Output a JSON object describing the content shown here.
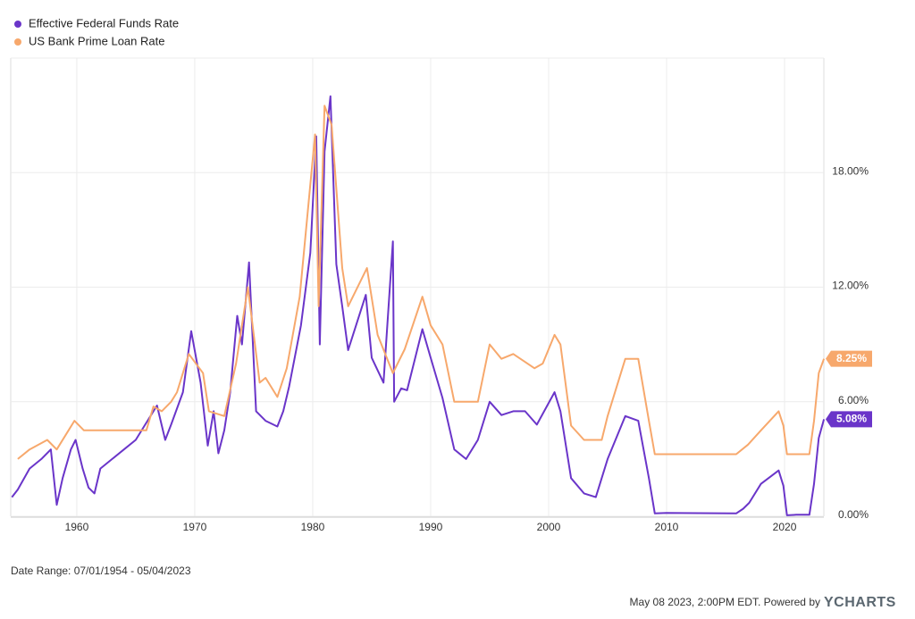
{
  "chart_data": {
    "type": "line",
    "xlim": [
      1954.4,
      2023.33
    ],
    "xticks": [
      1960,
      1970,
      1980,
      1990,
      2000,
      2010,
      2020
    ],
    "ylim": [
      0,
      24
    ],
    "yticks": [
      {
        "value": 0,
        "label": "0.00%"
      },
      {
        "value": 6,
        "label": "6.00%"
      },
      {
        "value": 12,
        "label": "12.00%"
      },
      {
        "value": 18,
        "label": "18.00%"
      }
    ],
    "grid": true,
    "legend": "top-left",
    "series": [
      {
        "name": "Effective Federal Funds Rate",
        "color": "#6a35c9",
        "x": [
          1954.5,
          1955,
          1956,
          1957,
          1957.8,
          1958.3,
          1958.8,
          1959.5,
          1959.9,
          1960.5,
          1961,
          1961.5,
          1962,
          1963,
          1964,
          1965,
          1966,
          1966.8,
          1967.5,
          1968,
          1969,
          1969.7,
          1970.5,
          1971.1,
          1971.6,
          1972,
          1972.5,
          1973,
          1973.6,
          1974,
          1974.6,
          1975.2,
          1976,
          1977,
          1977.5,
          1978,
          1979,
          1979.8,
          1980.3,
          1980.6,
          1981,
          1981.5,
          1982,
          1982.5,
          1983,
          1984.5,
          1985,
          1986,
          1986.8,
          1986.9,
          1987.5,
          1988,
          1989.3,
          1990,
          1991,
          1992,
          1993,
          1994,
          1995,
          1996,
          1997,
          1998,
          1999,
          2000.5,
          2001,
          2001.9,
          2003,
          2004,
          2005,
          2006.5,
          2007.6,
          2008.5,
          2009,
          2010,
          2015.9,
          2016.5,
          2017,
          2018,
          2019.5,
          2019.9,
          2020.2,
          2021,
          2022.1,
          2022.5,
          2022.9,
          2023.34
        ],
        "values": [
          1.0,
          1.4,
          2.5,
          3.0,
          3.5,
          0.6,
          2.0,
          3.5,
          4.0,
          2.5,
          1.5,
          1.2,
          2.5,
          3.0,
          3.5,
          4.0,
          5.0,
          5.8,
          4.0,
          4.8,
          6.5,
          9.7,
          7.0,
          3.7,
          5.5,
          3.3,
          4.5,
          6.5,
          10.5,
          9.0,
          13.3,
          5.5,
          5.0,
          4.7,
          5.5,
          6.8,
          10.0,
          13.8,
          19.9,
          9.0,
          19.1,
          22.0,
          13.2,
          11.0,
          8.7,
          11.6,
          8.3,
          7.0,
          14.4,
          6.0,
          6.7,
          6.6,
          9.8,
          8.3,
          6.2,
          3.5,
          3.0,
          4.0,
          6.0,
          5.3,
          5.5,
          5.5,
          4.8,
          6.5,
          5.5,
          2.0,
          1.2,
          1.0,
          3.0,
          5.25,
          5.0,
          2.0,
          0.15,
          0.18,
          0.15,
          0.4,
          0.7,
          1.7,
          2.4,
          1.6,
          0.05,
          0.08,
          0.08,
          1.7,
          4.1,
          5.08
        ],
        "value_labels": [
          null,
          null,
          null,
          null,
          null,
          null,
          null,
          null,
          null,
          null,
          null,
          null,
          null,
          null,
          null,
          null,
          null,
          null,
          null,
          null,
          null,
          null,
          null,
          null,
          null,
          null,
          null,
          null,
          null,
          null,
          null,
          null,
          null,
          null,
          null,
          null,
          null,
          null,
          null,
          null,
          null,
          null,
          null,
          null,
          null,
          null,
          null,
          null,
          null,
          null,
          null,
          null,
          null,
          null,
          null,
          null,
          null,
          null,
          null,
          null,
          null,
          null,
          null,
          null,
          null,
          null,
          null,
          null,
          null,
          null,
          null,
          null,
          null,
          null,
          null,
          null,
          null,
          null,
          null,
          null,
          null,
          null,
          null,
          null,
          null,
          "5.08%"
        ]
      },
      {
        "name": "US Bank Prime Loan Rate",
        "color": "#f7a86c",
        "x": [
          1955,
          1956,
          1957.5,
          1958.3,
          1959.3,
          1959.8,
          1960.6,
          1965.9,
          1966.5,
          1967.2,
          1968,
          1968.5,
          1969.5,
          1970.7,
          1971.2,
          1972.5,
          1973.5,
          1974.5,
          1975.5,
          1976,
          1977,
          1977.8,
          1978.9,
          1980.2,
          1980.5,
          1981,
          1981.6,
          1982.5,
          1983,
          1984.6,
          1985.5,
          1986.8,
          1987.8,
          1989.3,
          1990,
          1991,
          1992,
          1993,
          1994,
          1995,
          1996,
          1997,
          1998.8,
          1999.5,
          2000.5,
          2001,
          2001.9,
          2003,
          2004.5,
          2005,
          2006.5,
          2007.6,
          2008.5,
          2009,
          2015.9,
          2016.9,
          2018,
          2019.5,
          2019.9,
          2020.2,
          2022.1,
          2022.5,
          2022.9,
          2023.34
        ],
        "values": [
          3.0,
          3.5,
          4.0,
          3.5,
          4.5,
          5.0,
          4.5,
          4.5,
          5.75,
          5.5,
          6.0,
          6.5,
          8.5,
          7.5,
          5.5,
          5.25,
          8.0,
          12.0,
          7.0,
          7.25,
          6.25,
          7.75,
          11.5,
          20.0,
          11.0,
          21.5,
          20.5,
          13.0,
          11.0,
          13.0,
          9.5,
          7.5,
          8.75,
          11.5,
          10.0,
          9.0,
          6.0,
          6.0,
          6.0,
          9.0,
          8.25,
          8.5,
          7.75,
          8.0,
          9.5,
          9.0,
          4.75,
          4.0,
          4.0,
          5.25,
          8.25,
          8.25,
          5.0,
          3.25,
          3.25,
          3.75,
          4.5,
          5.5,
          4.75,
          3.25,
          3.25,
          5.0,
          7.5,
          8.25
        ],
        "value_labels": [
          null,
          null,
          null,
          null,
          null,
          null,
          null,
          null,
          null,
          null,
          null,
          null,
          null,
          null,
          null,
          null,
          null,
          null,
          null,
          null,
          null,
          null,
          null,
          null,
          null,
          null,
          null,
          null,
          null,
          null,
          null,
          null,
          null,
          null,
          null,
          null,
          null,
          null,
          null,
          null,
          null,
          null,
          null,
          null,
          null,
          null,
          null,
          null,
          null,
          null,
          null,
          null,
          null,
          null,
          null,
          null,
          null,
          null,
          null,
          null,
          null,
          null,
          null,
          "8.25%"
        ]
      }
    ]
  },
  "footer": {
    "date_range": "Date Range: 07/01/1954 - 05/04/2023",
    "timestamp": "May 08 2023, 2:00PM EDT. Powered by",
    "logo": "YCHARTS"
  }
}
